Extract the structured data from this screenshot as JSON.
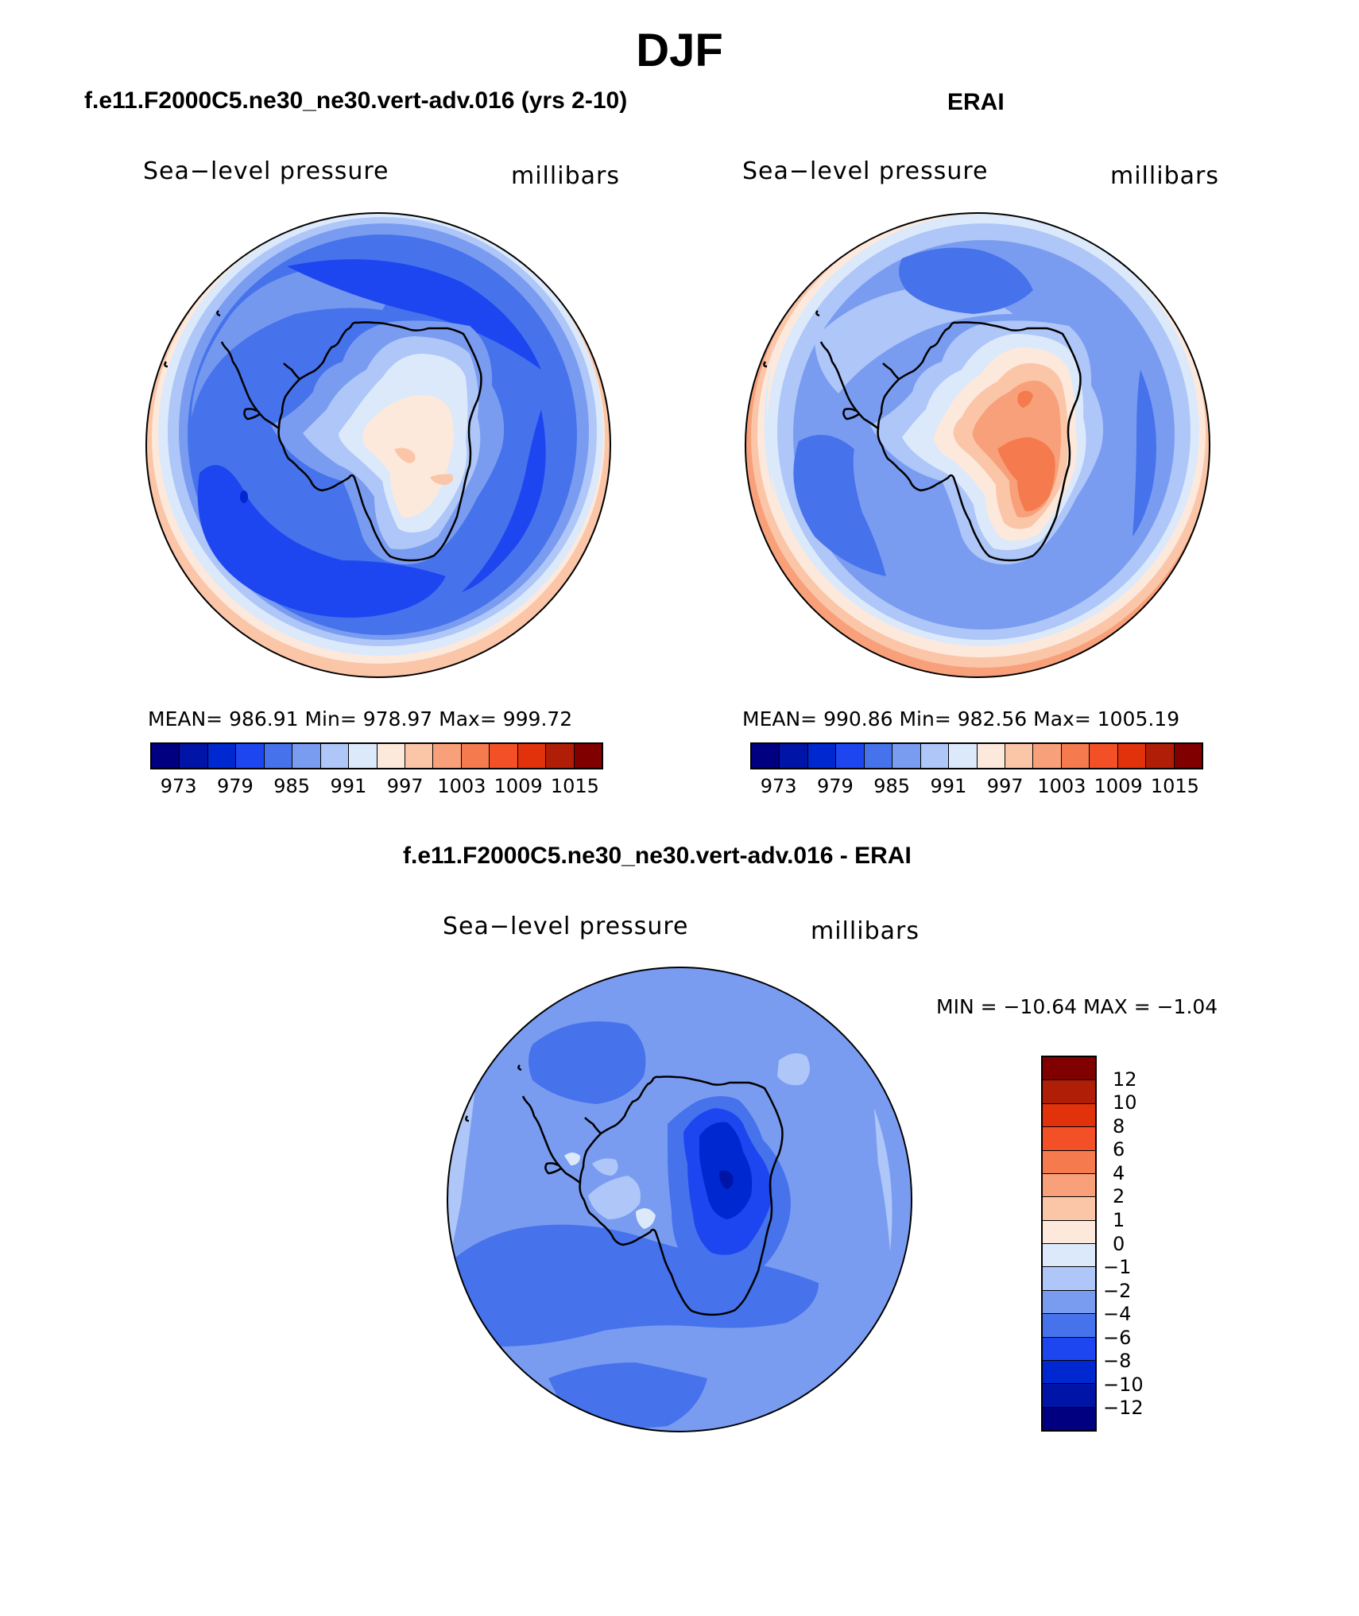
{
  "figure": {
    "title": "DJF"
  },
  "panels": {
    "model": {
      "title": "f.e11.F2000C5.ne30_ne30.vert-adv.016 (yrs 2-10)",
      "field_label": "Sea−level pressure",
      "units_label": "millibars",
      "stats": "MEAN= 986.91   Min= 978.97   Max= 999.72",
      "mean": 986.91,
      "min": 978.97,
      "max": 999.72
    },
    "obs": {
      "title": "ERAI",
      "field_label": "Sea−level pressure",
      "units_label": "millibars",
      "stats": "MEAN= 990.86   Min= 982.56   Max= 1005.19",
      "mean": 990.86,
      "min": 982.56,
      "max": 1005.19
    },
    "diff": {
      "title": "f.e11.F2000C5.ne30_ne30.vert-adv.016 - ERAI",
      "field_label": "Sea−level pressure",
      "units_label": "millibars",
      "stats": "MIN = −10.64 MAX =  −1.04",
      "min": -10.64,
      "max": -1.04
    }
  },
  "colorbar_abs": {
    "colors": [
      "#000080",
      "#0014a8",
      "#0028d0",
      "#1e46f0",
      "#4673ec",
      "#7a9cf0",
      "#aec6f8",
      "#dbe9fb",
      "#fde9dc",
      "#fbc5a8",
      "#f8a07a",
      "#f57a4e",
      "#f35028",
      "#e1320c",
      "#b01e08",
      "#800000"
    ],
    "tick_labels": [
      "973",
      "979",
      "985",
      "991",
      "997",
      "1003",
      "1009",
      "1015"
    ]
  },
  "colorbar_diff": {
    "colors": [
      "#800000",
      "#b01e08",
      "#e1320c",
      "#f35028",
      "#f57a4e",
      "#f8a07a",
      "#fbc5a8",
      "#fde9dc",
      "#dbe9fb",
      "#aec6f8",
      "#7a9cf0",
      "#4673ec",
      "#1e46f0",
      "#0028d0",
      "#0014a8",
      "#000080"
    ],
    "tick_labels": [
      "12",
      "10",
      "8",
      "6",
      "4",
      "2",
      "1",
      "0",
      "−1",
      "−2",
      "−4",
      "−6",
      "−8",
      "−10",
      "−12"
    ]
  },
  "map_colors": {
    "c975": "#1e46f0",
    "c981": "#4673ec",
    "c987": "#7a9cf0",
    "c993": "#aec6f8",
    "c996": "#dbe9fb",
    "c999": "#fde9dc",
    "c1002": "#fbc5a8",
    "c1005": "#f8a07a",
    "c1008": "#f57a4e"
  }
}
